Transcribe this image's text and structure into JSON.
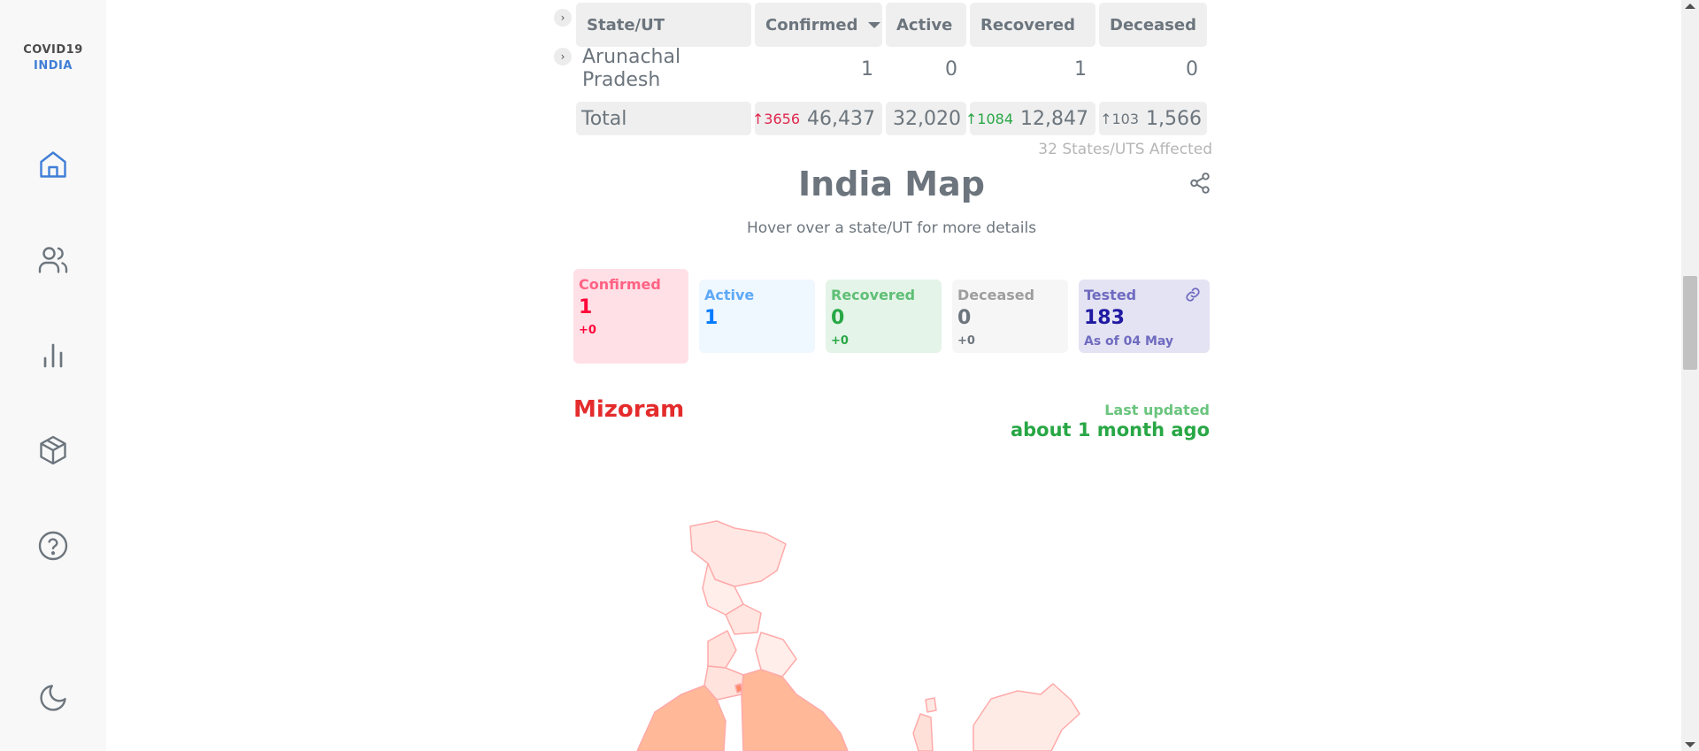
{
  "brand": {
    "line1": "COVID19",
    "line2": "INDIA"
  },
  "sidebar": {
    "items": [
      "home-icon",
      "users-icon",
      "bar-chart-icon",
      "box-icon",
      "help-icon",
      "moon-icon"
    ]
  },
  "table": {
    "headers": [
      "State/UT",
      "Confirmed",
      "Active",
      "Recovered",
      "Deceased"
    ],
    "row": {
      "name_line1": "Arunachal",
      "name_line2": "Pradesh",
      "confirmed": "1",
      "active": "0",
      "recovered": "1",
      "deceased": "0"
    },
    "total": {
      "label": "Total",
      "confirmed_delta": "3656",
      "confirmed": "46,437",
      "active": "32,020",
      "recovered_delta": "1084",
      "recovered": "12,847",
      "deceased_delta": "103",
      "deceased": "1,566"
    },
    "affected": "32 States/UTS Affected"
  },
  "map_section": {
    "title": "India Map",
    "subtitle": "Hover over a state/UT for more details"
  },
  "stats": {
    "confirmed": {
      "label": "Confirmed",
      "value": "1",
      "delta": "+0"
    },
    "active": {
      "label": "Active",
      "value": "1"
    },
    "recovered": {
      "label": "Recovered",
      "value": "0",
      "delta": "+0"
    },
    "deceased": {
      "label": "Deceased",
      "value": "0",
      "delta": "+0"
    },
    "tested": {
      "label": "Tested",
      "value": "183",
      "note": "As of 04 May"
    }
  },
  "state": {
    "name": "Mizoram",
    "updated_label": "Last updated",
    "updated_value": "about 1 month ago"
  },
  "colors": {
    "accent": "#3f7ed6",
    "confirmed": "#ff073a",
    "recovered": "#28a745",
    "tested": "#201aa2",
    "map_fill": "#ffe6dd",
    "map_stroke": "#ff9c9c"
  }
}
